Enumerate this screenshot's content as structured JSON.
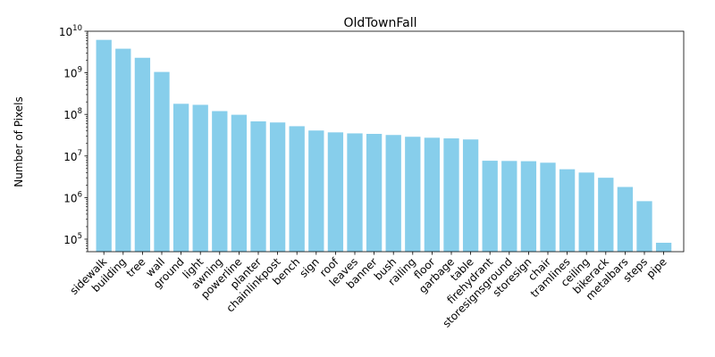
{
  "chart_data": {
    "type": "bar",
    "title": "OldTownFall",
    "xlabel": "",
    "ylabel": "Number of Pixels",
    "yscale": "log",
    "ylim": [
      50000,
      10000000000
    ],
    "bar_color": "#87ceeb",
    "y_ticks": [
      {
        "value": 100000,
        "base": "10",
        "exp": "5"
      },
      {
        "value": 1000000,
        "base": "10",
        "exp": "6"
      },
      {
        "value": 10000000,
        "base": "10",
        "exp": "7"
      },
      {
        "value": 100000000,
        "base": "10",
        "exp": "8"
      },
      {
        "value": 1000000000,
        "base": "10",
        "exp": "9"
      },
      {
        "value": 10000000000,
        "base": "10",
        "exp": "10"
      }
    ],
    "categories": [
      "sidewalk",
      "building",
      "tree",
      "wall",
      "ground",
      "light",
      "awning",
      "powerline",
      "planter",
      "chainlinkpost",
      "bench",
      "sign",
      "roof",
      "leaves",
      "banner",
      "bush",
      "railing",
      "floor",
      "garbage",
      "table",
      "firehydrant",
      "storesignsground",
      "storesign",
      "chair",
      "tramlines",
      "ceiling",
      "bikerack",
      "metalbars",
      "steps",
      "pipe"
    ],
    "values": [
      6200000000,
      3800000000,
      2300000000,
      1050000000,
      180000000,
      170000000,
      120000000,
      98000000,
      68000000,
      64000000,
      52000000,
      41000000,
      37000000,
      35000000,
      34000000,
      32000000,
      29000000,
      27500000,
      26500000,
      25000000,
      7700000,
      7600000,
      7500000,
      6900000,
      4800000,
      4000000,
      3000000,
      1800000,
      820000,
      82000
    ]
  }
}
